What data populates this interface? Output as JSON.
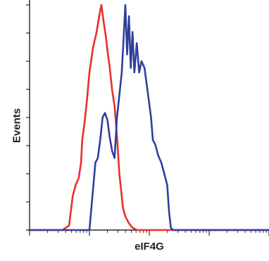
{
  "chart_data": {
    "type": "line",
    "title": "",
    "xlabel": "eIF4G",
    "ylabel": "Events",
    "x_scale": "log",
    "x_decades": [
      0,
      1,
      2,
      3,
      4
    ],
    "ylim": [
      0,
      100
    ],
    "y_major_ticks": 8,
    "grid": false,
    "series": [
      {
        "color": "#e8302a",
        "x": [
          0.0,
          0.55,
          0.66,
          0.72,
          0.77,
          0.82,
          0.86,
          0.88,
          0.92,
          0.96,
          1.0,
          1.06,
          1.12,
          1.17,
          1.2,
          1.24,
          1.28,
          1.3,
          1.34,
          1.38,
          1.42,
          1.46,
          1.5,
          1.56,
          1.6,
          1.66,
          1.72,
          1.8,
          1.9,
          4.0
        ],
        "y": [
          0,
          0,
          2,
          15,
          20,
          23,
          30,
          40,
          48,
          58,
          70,
          81,
          88,
          96,
          100,
          92,
          85,
          80,
          72,
          62,
          55,
          42,
          25,
          10,
          6,
          3,
          1,
          0,
          0,
          0
        ]
      },
      {
        "color": "#2f3f9e",
        "x": [
          0.0,
          1.0,
          1.06,
          1.1,
          1.14,
          1.18,
          1.22,
          1.26,
          1.3,
          1.34,
          1.38,
          1.42,
          1.46,
          1.5,
          1.54,
          1.57,
          1.6,
          1.63,
          1.66,
          1.69,
          1.72,
          1.75,
          1.79,
          1.83,
          1.87,
          1.92,
          1.98,
          2.03,
          2.06,
          2.1,
          2.15,
          2.2,
          2.25,
          2.3,
          2.33,
          2.36,
          2.4,
          2.6,
          4.0
        ],
        "y": [
          0,
          0,
          18,
          30,
          32,
          40,
          50,
          52,
          49,
          41,
          35,
          32,
          50,
          60,
          70,
          85,
          100,
          78,
          95,
          72,
          88,
          70,
          83,
          70,
          75,
          72,
          60,
          50,
          40,
          38,
          33,
          30,
          25,
          20,
          8,
          1,
          0,
          0,
          0
        ]
      }
    ]
  }
}
